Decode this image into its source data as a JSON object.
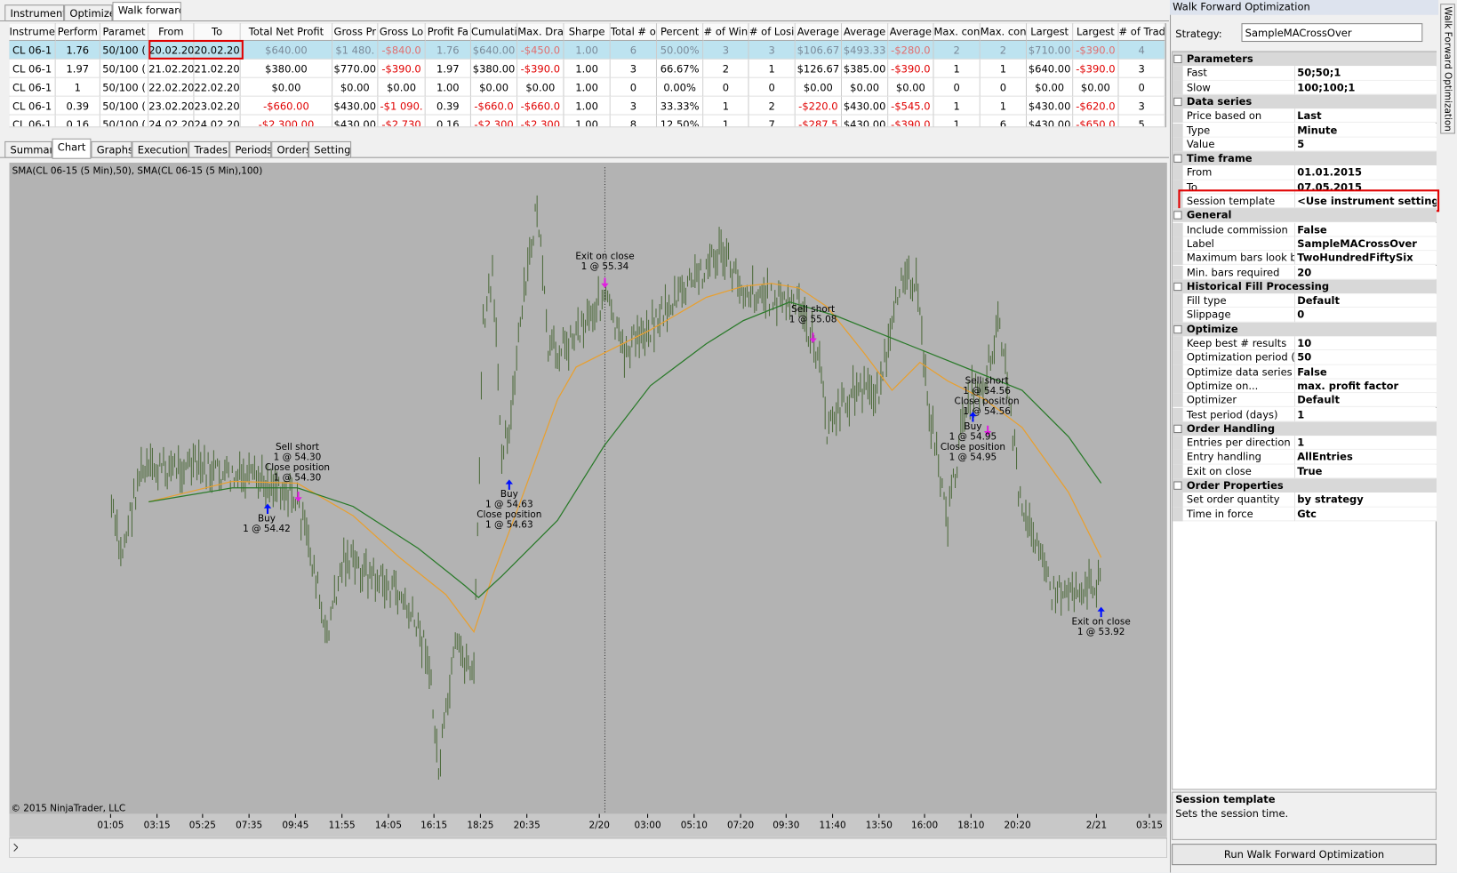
{
  "top_tabs": [
    "Instruments",
    "Optimizer",
    "Walk forward"
  ],
  "table": {
    "headers": [
      "Instrume",
      "Perform",
      "Paramet",
      "From",
      "To",
      "Total Net Profit",
      "Gross Pr",
      "Gross Lo",
      "Profit Fa",
      "Cumulati",
      "Max. Dra",
      "Sharpe",
      "Total # o",
      "Percent",
      "# of Win",
      "# of Losi",
      "Average",
      "Average",
      "Average",
      "Max. con",
      "Max. con",
      "Largest",
      "Largest",
      "# of Trad"
    ],
    "rows": [
      [
        "CL 06-1",
        "1.76",
        "50/100 (",
        "20.02.20",
        "20.02.20",
        "$640.00",
        "$1 480.",
        "-$840.0",
        "1.76",
        "$640.00",
        "-$450.0",
        "1.00",
        "6",
        "50.00%",
        "3",
        "3",
        "$106.67",
        "$493.33",
        "-$280.0",
        "2",
        "2",
        "$710.00",
        "-$390.0",
        "4"
      ],
      [
        "CL 06-1",
        "1.97",
        "50/100 (",
        "21.02.20",
        "21.02.20",
        "$380.00",
        "$770.00",
        "-$390.0",
        "1.97",
        "$380.00",
        "-$390.0",
        "1.00",
        "3",
        "66.67%",
        "2",
        "1",
        "$126.67",
        "$385.00",
        "-$390.0",
        "1",
        "1",
        "$640.00",
        "-$390.0",
        "3"
      ],
      [
        "CL 06-1",
        "1",
        "50/100 (",
        "22.02.20",
        "22.02.20",
        "$0.00",
        "$0.00",
        "$0.00",
        "1.00",
        "$0.00",
        "$0.00",
        "1.00",
        "0",
        "0.00%",
        "0",
        "0",
        "$0.00",
        "$0.00",
        "$0.00",
        "0",
        "0",
        "$0.00",
        "$0.00",
        "0"
      ],
      [
        "CL 06-1",
        "0.39",
        "50/100 (",
        "23.02.20",
        "23.02.20",
        "-$660.00",
        "$430.00",
        "-$1 090.",
        "0.39",
        "-$660.0",
        "-$660.0",
        "1.00",
        "3",
        "33.33%",
        "1",
        "2",
        "-$220.0",
        "$430.00",
        "-$545.0",
        "1",
        "1",
        "$430.00",
        "-$620.0",
        "3"
      ],
      [
        "CL 06-1",
        "0.16",
        "50/100 (",
        "24.02.20",
        "24.02.20",
        "-$2 300.00",
        "$430.00",
        "-$2 730",
        "0.16",
        "-$2 300",
        "-$2 300",
        "1.00",
        "8",
        "12.50%",
        "1",
        "7",
        "-$287.5",
        "$430.00",
        "-$390.0",
        "1",
        "6",
        "$430.00",
        "-$650.0",
        "5"
      ]
    ]
  },
  "chart_tabs": [
    "Summary",
    "Chart",
    "Graphs",
    "Executions",
    "Trades",
    "Periods",
    "Orders",
    "Settings"
  ],
  "chart": {
    "legend": "SMA(CL 06-15 (5 Min),50), SMA(CL 06-15 (5 Min),100)",
    "copyright": "© 2015 NinjaTrader, LLC",
    "time_labels": [
      "01:05",
      "03:15",
      "05:25",
      "07:35",
      "09:45",
      "11:55",
      "14:05",
      "16:15",
      "18:25",
      "20:35",
      "2/20",
      "03:00",
      "05:10",
      "07:20",
      "09:30",
      "11:40",
      "13:50",
      "16:00",
      "18:10",
      "20:20",
      "2/21",
      "03:15"
    ],
    "annotations": [
      {
        "lines": [
          "Sell short",
          "1 @ 54.30",
          "Close position",
          "1 @ 54.30"
        ]
      },
      {
        "lines": [
          "Buy",
          "1 @ 54.42"
        ]
      },
      {
        "lines": [
          "Exit on close",
          "1 @ 55.34"
        ]
      },
      {
        "lines": [
          "Buy",
          "1 @ 54.63",
          "Close position",
          "1 @ 54.63"
        ]
      },
      {
        "lines": [
          "Sell short",
          "1 @ 55.08"
        ]
      },
      {
        "lines": [
          "Sell short",
          "1 @ 54.56",
          "Close position",
          "1 @ 54.56"
        ]
      },
      {
        "lines": [
          "Buy",
          "1 @ 54.95",
          "Close position",
          "1 @ 54.95"
        ]
      },
      {
        "lines": [
          "Exit on close",
          "1 @ 53.92"
        ]
      }
    ]
  },
  "panel": {
    "title": "Walk Forward Optimization",
    "side_tab": "Walk Forward Optimization",
    "strategy_label": "Strategy:",
    "strategy": "SampleMACrossOver",
    "sections": [
      {
        "name": "Parameters",
        "rows": [
          [
            "Fast",
            "50;50;1"
          ],
          [
            "Slow",
            "100;100;1"
          ]
        ]
      },
      {
        "name": "Data series",
        "rows": [
          [
            "Price based on",
            "Last"
          ],
          [
            "Type",
            "Minute"
          ],
          [
            "Value",
            "5"
          ]
        ]
      },
      {
        "name": "Time frame",
        "rows": [
          [
            "From",
            "01.01.2015"
          ],
          [
            "To",
            "07.05.2015"
          ],
          [
            "Session template",
            "<Use instrument settings>"
          ]
        ]
      },
      {
        "name": "General",
        "rows": [
          [
            "Include commission",
            "False"
          ],
          [
            "Label",
            "SampleMACrossOver"
          ],
          [
            "Maximum bars look bac",
            "TwoHundredFiftySix"
          ],
          [
            "Min. bars required",
            "20"
          ]
        ]
      },
      {
        "name": "Historical Fill Processing",
        "rows": [
          [
            "Fill type",
            "Default"
          ],
          [
            "Slippage",
            "0"
          ]
        ]
      },
      {
        "name": "Optimize",
        "rows": [
          [
            "Keep best # results",
            "10"
          ],
          [
            "Optimization period (day",
            "50"
          ],
          [
            "Optimize data series",
            "False"
          ],
          [
            "Optimize on...",
            "max. profit factor"
          ],
          [
            "Optimizer",
            "Default"
          ],
          [
            "Test period (days)",
            "1"
          ]
        ]
      },
      {
        "name": "Order Handling",
        "rows": [
          [
            "Entries per direction",
            "1"
          ],
          [
            "Entry handling",
            "AllEntries"
          ],
          [
            "Exit on close",
            "True"
          ]
        ]
      },
      {
        "name": "Order Properties",
        "rows": [
          [
            "Set order quantity",
            "by strategy"
          ],
          [
            "Time in force",
            "Gtc"
          ]
        ]
      }
    ],
    "help_title": "Session template",
    "help_text": "Sets the session time.",
    "button": "Run Walk Forward Optimization"
  }
}
